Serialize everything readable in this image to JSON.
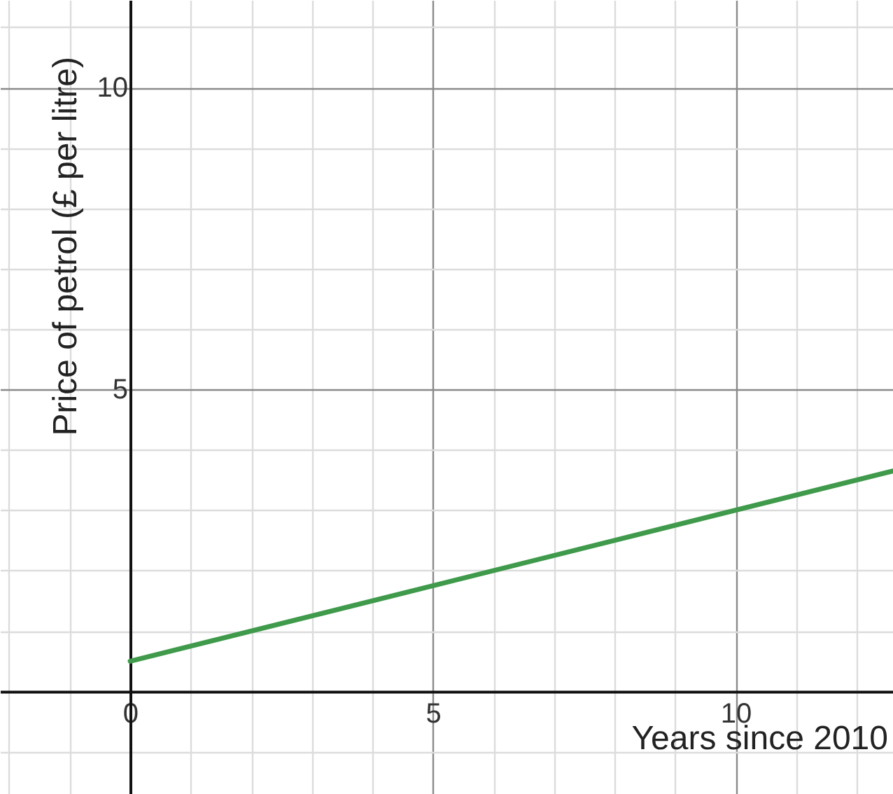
{
  "chart_data": {
    "type": "line",
    "xlabel": "Years since 2010",
    "ylabel": "Price of petrol (£ per litre)",
    "x": [
      0,
      12.6
    ],
    "series": [
      {
        "color": "#3f9a4b",
        "values": [
          0.5,
          3.65
        ]
      }
    ],
    "xlim": [
      -2.15,
      12.6
    ],
    "ylim": [
      -1.7,
      11.45
    ],
    "xticks": [
      {
        "value": -2,
        "label": null
      },
      {
        "value": -1,
        "label": null
      },
      0,
      {
        "value": 1,
        "label": null
      },
      {
        "value": 2,
        "label": null
      },
      {
        "value": 3,
        "label": null
      },
      {
        "value": 4,
        "label": null
      },
      5,
      {
        "value": 6,
        "label": null
      },
      {
        "value": 7,
        "label": null
      },
      {
        "value": 8,
        "label": null
      },
      {
        "value": 9,
        "label": null
      },
      10,
      {
        "value": 11,
        "label": null
      },
      {
        "value": 12,
        "label": null
      }
    ],
    "yticks": [
      {
        "value": -1,
        "label": null
      },
      {
        "value": 0,
        "label": null
      },
      {
        "value": 1,
        "label": null
      },
      {
        "value": 2,
        "label": null
      },
      {
        "value": 3,
        "label": null
      },
      {
        "value": 4,
        "label": null
      },
      5,
      {
        "value": 6,
        "label": null
      },
      {
        "value": 7,
        "label": null
      },
      {
        "value": 8,
        "label": null
      },
      {
        "value": 9,
        "label": null
      },
      10,
      {
        "value": 11,
        "label": null
      }
    ],
    "grid": true,
    "marker": "none",
    "line_style": "solid"
  }
}
